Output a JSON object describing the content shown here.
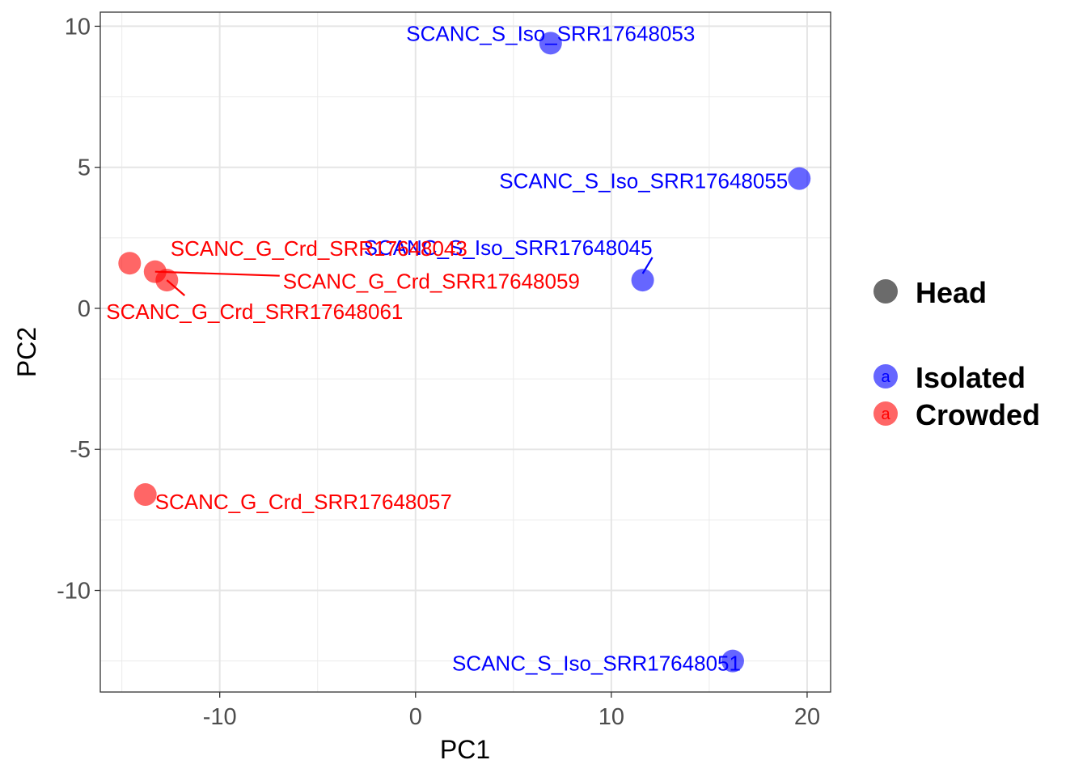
{
  "chart_data": {
    "type": "scatter",
    "title": "",
    "xlabel": "PC1",
    "ylabel": "PC2",
    "xlim": [
      -16.1,
      21.2
    ],
    "ylim": [
      -13.6,
      10.5
    ],
    "xticks": [
      -10,
      0,
      10,
      20
    ],
    "xtick_labels": [
      "-10",
      "0",
      "10",
      "20"
    ],
    "yticks": [
      -10,
      -5,
      0,
      5,
      10
    ],
    "ytick_labels": [
      "-10",
      "-5",
      "0",
      "5",
      "10"
    ],
    "grid": true,
    "legend_position": "right",
    "legend": {
      "shape_entries": [
        {
          "label": "Head",
          "color": "#6b6b6b"
        }
      ],
      "color_entries": [
        {
          "label": "Isolated",
          "color": "#0000ff",
          "key_letter": "a"
        },
        {
          "label": "Crowded",
          "color": "#ff0000",
          "key_letter": "a"
        }
      ]
    },
    "series": [
      {
        "name": "Isolated",
        "color": "#0000ff",
        "points": [
          {
            "x": 6.9,
            "y": 9.4,
            "label": "SCANC_S_Iso_SRR17648053"
          },
          {
            "x": 19.6,
            "y": 4.6,
            "label": "SCANC_S_Iso_SRR17648055"
          },
          {
            "x": 11.6,
            "y": 1.0,
            "label": "SCANC_S_Iso_SRR17648045"
          },
          {
            "x": 16.2,
            "y": -12.5,
            "label": "SCANC_S_Iso_SRR17648051"
          }
        ]
      },
      {
        "name": "Crowded",
        "color": "#ff0000",
        "points": [
          {
            "x": -14.6,
            "y": 1.6,
            "label": "SCANC_G_Crd_SRR17648043"
          },
          {
            "x": -13.3,
            "y": 1.3,
            "label": "SCANC_G_Crd_SRR17648059"
          },
          {
            "x": -12.7,
            "y": 1.0,
            "label": "SCANC_G_Crd_SRR17648061"
          },
          {
            "x": -13.8,
            "y": -6.6,
            "label": "SCANC_G_Crd_SRR17648057"
          }
        ]
      }
    ]
  }
}
